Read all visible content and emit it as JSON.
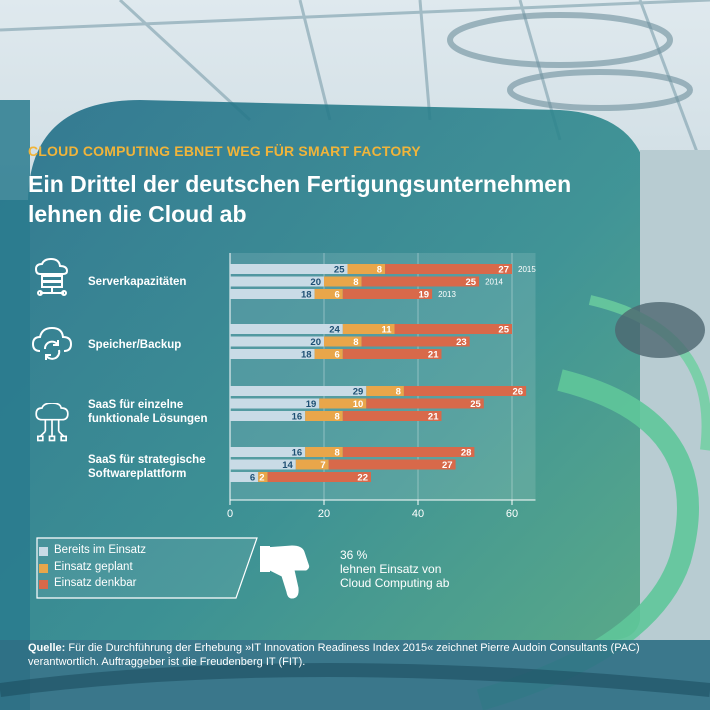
{
  "header": {
    "subtitle": "CLOUD COMPUTING EBNET WEG FÜR SMART FACTORY",
    "title_line1": "Ein Drittel der deutschen Fertigungsunternehmen",
    "title_line2": "lehnen die Cloud ab"
  },
  "icons": [
    "server-cloud-icon",
    "cloud-sync-icon",
    "cloud-network-icon"
  ],
  "chart_data": {
    "type": "bar",
    "orientation": "horizontal",
    "stacked": true,
    "categories": [
      "Serverkapazitäten",
      "Speicher/Backup",
      "SaaS für einzelne funktionale Lösungen",
      "SaaS für strategische Softwareplattform"
    ],
    "years": [
      "2015",
      "2014",
      "2013"
    ],
    "series": [
      {
        "name": "Bereits im Einsatz",
        "color": "#c9dbe6",
        "values": [
          [
            25,
            20,
            18
          ],
          [
            24,
            20,
            18
          ],
          [
            29,
            19,
            16
          ],
          [
            16,
            14,
            6
          ]
        ]
      },
      {
        "name": "Einsatz geplant",
        "color": "#e9a64a",
        "values": [
          [
            8,
            8,
            6
          ],
          [
            11,
            8,
            6
          ],
          [
            8,
            10,
            8
          ],
          [
            8,
            7,
            2
          ]
        ]
      },
      {
        "name": "Einsatz denkbar",
        "color": "#d8694a",
        "values": [
          [
            27,
            25,
            19
          ],
          [
            25,
            23,
            21
          ],
          [
            26,
            25,
            21
          ],
          [
            28,
            27,
            22
          ]
        ]
      }
    ],
    "xlim": [
      0,
      65
    ],
    "xticks": [
      0,
      20,
      40,
      60
    ],
    "xlabel": "",
    "ylabel": "",
    "title": "",
    "grid": true,
    "legend_placement": "bottom-left"
  },
  "legend": {
    "items": [
      "Bereits im Einsatz",
      "Einsatz geplant",
      "Einsatz denkbar"
    ]
  },
  "callout": {
    "percent": "36 %",
    "line1": "lehnen Einsatz von",
    "line2": "Cloud Computing ab"
  },
  "source": {
    "label": "Quelle:",
    "text": " Für die Durchführung der Erhebung »IT Innovation Readiness Index 2015« zeichnet Pierre Audoin Consultants (PAC) verantwortlich. Auftraggeber ist die Freudenberg IT (FIT)."
  }
}
